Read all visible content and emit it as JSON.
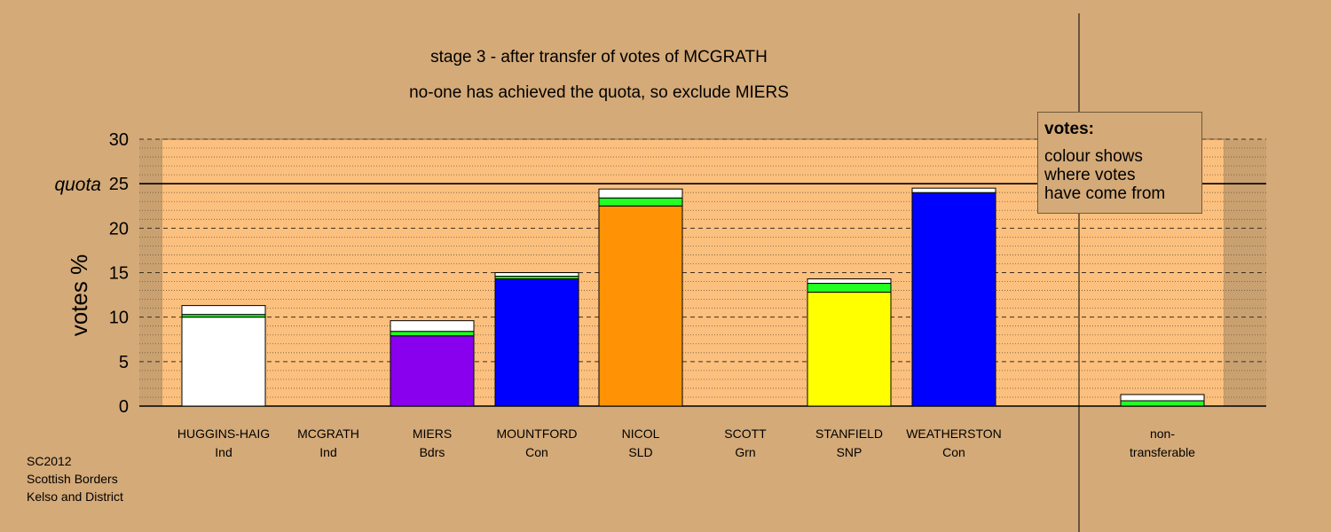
{
  "header": {
    "title": "stage 3 - after transfer of votes of MCGRATH",
    "subtitle": "no-one has achieved the quota, so exclude MIERS"
  },
  "legend": {
    "title": "votes:",
    "lines": [
      "colour shows",
      "where votes",
      "have come from"
    ]
  },
  "footer": {
    "lines": [
      "SC2012",
      "Scottish Borders",
      "Kelso and District"
    ]
  },
  "colors": {
    "background": "#d4aa78",
    "plot_area": "#fcc07e",
    "transfer_from_mcgrath": "#ffffff",
    "transfer_from_scott": "#22ff22"
  },
  "chart_data": {
    "type": "bar",
    "ylabel": "votes %",
    "ylim": [
      0,
      30
    ],
    "yticks": [
      0,
      5,
      10,
      15,
      20,
      25,
      30
    ],
    "quota": {
      "label": "quota",
      "value": 25
    },
    "categories": [
      {
        "name": "HUGGINS-HAIG",
        "party": "Ind",
        "segments": [
          {
            "value": 10.0,
            "color": "#ffffff"
          },
          {
            "value": 0.3,
            "color": "#22ff22"
          },
          {
            "value": 1.0,
            "color": "#ffffff"
          }
        ]
      },
      {
        "name": "MCGRATH",
        "party": "Ind",
        "segments": []
      },
      {
        "name": "MIERS",
        "party": "Bdrs",
        "segments": [
          {
            "value": 7.9,
            "color": "#8800ee"
          },
          {
            "value": 0.5,
            "color": "#22ff22"
          },
          {
            "value": 1.2,
            "color": "#ffffff"
          }
        ]
      },
      {
        "name": "MOUNTFORD",
        "party": "Con",
        "segments": [
          {
            "value": 14.3,
            "color": "#0000ff"
          },
          {
            "value": 0.3,
            "color": "#22ff22"
          },
          {
            "value": 0.4,
            "color": "#ffffff"
          }
        ]
      },
      {
        "name": "NICOL",
        "party": "SLD",
        "segments": [
          {
            "value": 22.5,
            "color": "#ff9305"
          },
          {
            "value": 0.9,
            "color": "#22ff22"
          },
          {
            "value": 1.0,
            "color": "#ffffff"
          }
        ]
      },
      {
        "name": "SCOTT",
        "party": "Grn",
        "segments": []
      },
      {
        "name": "STANFIELD",
        "party": "SNP",
        "segments": [
          {
            "value": 12.8,
            "color": "#ffff00"
          },
          {
            "value": 1.0,
            "color": "#22ff22"
          },
          {
            "value": 0.5,
            "color": "#ffffff"
          }
        ]
      },
      {
        "name": "WEATHERSTON",
        "party": "Con",
        "segments": [
          {
            "value": 24.0,
            "color": "#0000ff"
          },
          {
            "value": 0.0,
            "color": "#22ff22"
          },
          {
            "value": 0.5,
            "color": "#ffffff"
          }
        ]
      },
      {
        "name": "non-",
        "party": "transferable",
        "segments": [
          {
            "value": 0.6,
            "color": "#22ff22"
          },
          {
            "value": 0.7,
            "color": "#ffffff"
          }
        ]
      }
    ]
  }
}
